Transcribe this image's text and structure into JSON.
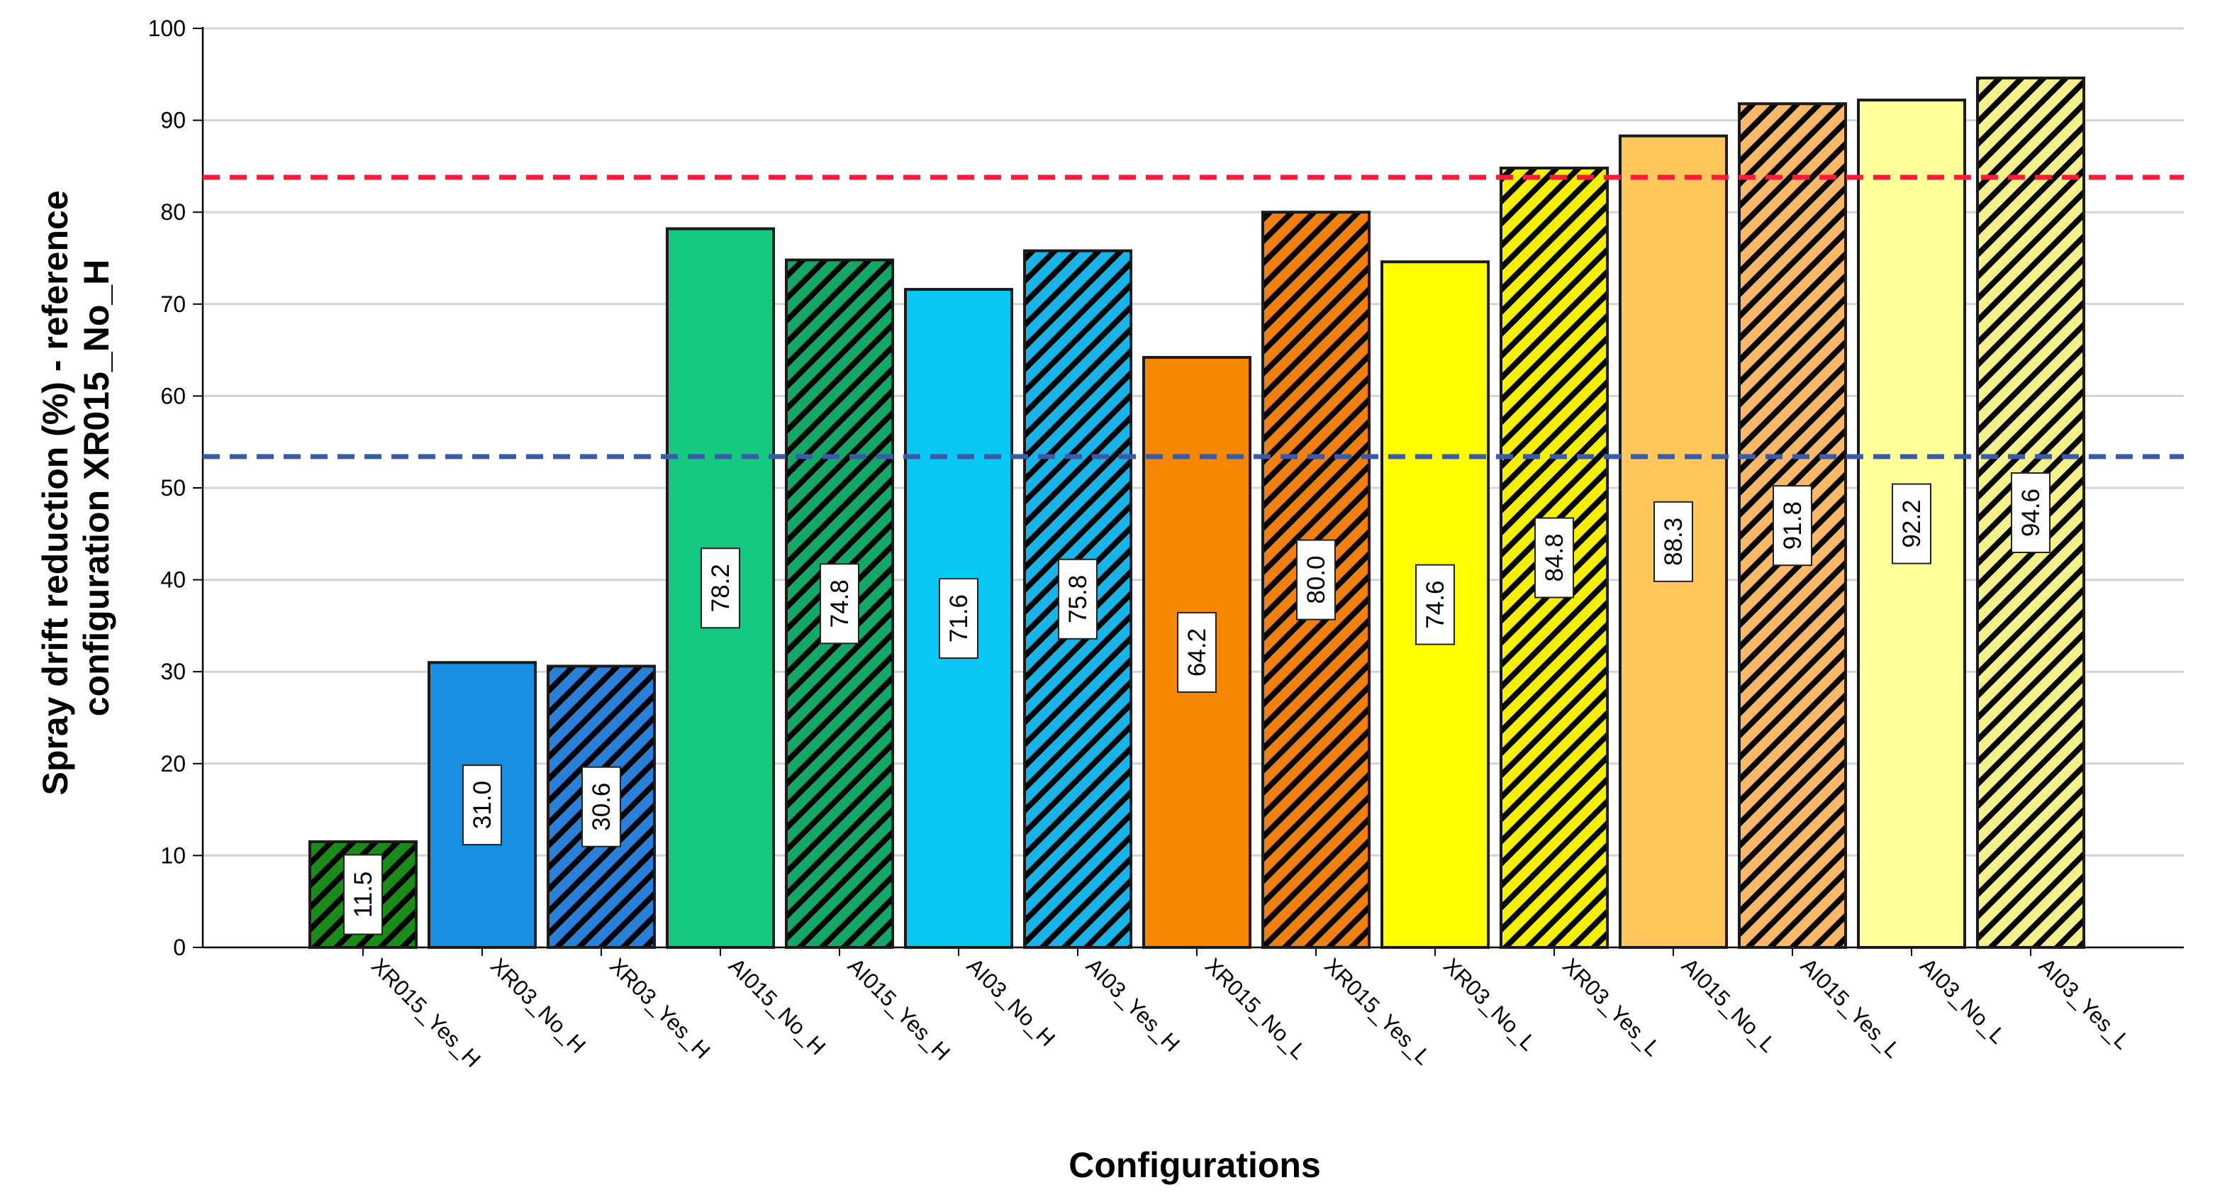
{
  "chart_data": {
    "type": "bar",
    "title": "",
    "xlabel": "Configurations",
    "ylabel_line1": "Spray drift reduction (%) - reference",
    "ylabel_line2": "configuration XR015_No_H",
    "ylim": [
      0,
      100
    ],
    "yticks": [
      0,
      10,
      20,
      30,
      40,
      50,
      60,
      70,
      80,
      90,
      100
    ],
    "grid": true,
    "categories": [
      "XR015_Yes_H",
      "XR03_No_H",
      "XR03_Yes_H",
      "AI015_No_H",
      "AI015_Yes_H",
      "AI03_No_H",
      "AI03_Yes_H",
      "XR015_No_L",
      "XR015_Yes_L",
      "XR03_No_L",
      "XR03_Yes_L",
      "AI015_No_L",
      "AI015_Yes_L",
      "AI03_No_L",
      "AI03_Yes_L"
    ],
    "values": [
      11.5,
      31.0,
      30.6,
      78.2,
      74.8,
      71.6,
      75.8,
      64.2,
      80.0,
      74.6,
      84.8,
      88.3,
      91.8,
      92.2,
      94.6
    ],
    "value_labels": [
      "11.5",
      "31.0",
      "30.6",
      "78.2",
      "74.8",
      "71.6",
      "75.8",
      "64.2",
      "80.0",
      "74.6",
      "84.8",
      "88.3",
      "91.8",
      "92.2",
      "94.6"
    ],
    "colors": [
      "#1a8c1a",
      "#1a8ee0",
      "#2a7fd8",
      "#14c882",
      "#14a868",
      "#0ac8f5",
      "#18b4e8",
      "#f58800",
      "#f08010",
      "#ffff00",
      "#f4f000",
      "#ffc65c",
      "#f9b768",
      "#ffff9a",
      "#f4f08a"
    ],
    "hatched": [
      true,
      false,
      true,
      false,
      true,
      false,
      true,
      false,
      true,
      false,
      true,
      false,
      true,
      false,
      true
    ],
    "reference_lines": [
      {
        "name": "red-reference-line",
        "value": 83.8,
        "color": "#ff1a3c"
      },
      {
        "name": "blue-reference-line",
        "value": 53.4,
        "color": "#3a5ca8"
      }
    ]
  }
}
